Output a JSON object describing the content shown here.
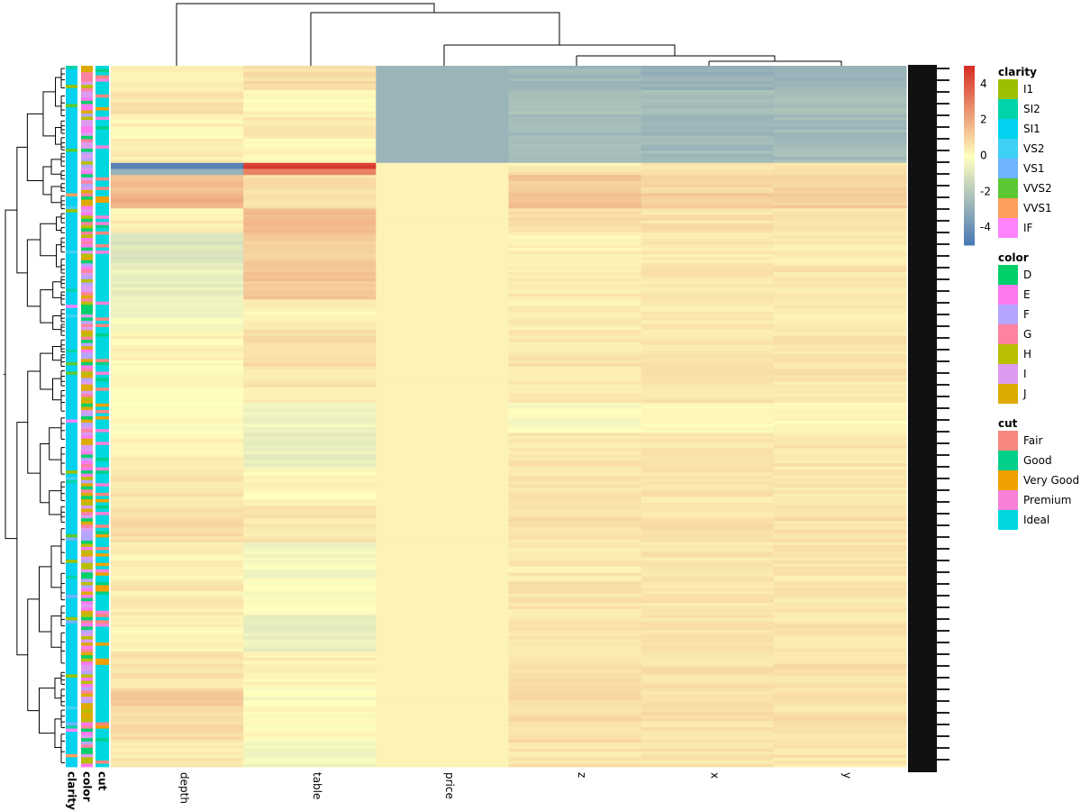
{
  "chart_data": {
    "type": "heatmap",
    "columns": [
      "depth",
      "table",
      "price",
      "z",
      "x",
      "y"
    ],
    "row_annotations": [
      "clarity",
      "color",
      "cut"
    ],
    "color_scale": {
      "ticks": [
        4,
        2,
        0,
        -2,
        -4
      ],
      "min": -5,
      "max": 5,
      "low_color": "#4575B4",
      "mid_color": "#FFFFBF",
      "high_color": "#D73027"
    },
    "segments": [
      {
        "rows": 8,
        "values": [
          0.4,
          0.8,
          -2.7,
          -2.6,
          -2.8,
          -2.7
        ]
      },
      {
        "rows": 8,
        "values": [
          0.6,
          0.2,
          -2.7,
          -2.2,
          -2.4,
          -2.3
        ]
      },
      {
        "rows": 8,
        "values": [
          0.3,
          0.5,
          -2.7,
          -2.5,
          -2.6,
          -2.5
        ]
      },
      {
        "rows": 8,
        "values": [
          0.5,
          0.3,
          -2.7,
          -2.3,
          -2.5,
          -2.4
        ]
      },
      {
        "rows": 2,
        "values": [
          -4.5,
          4.6,
          0.3,
          0.4,
          0.5,
          0.5
        ]
      },
      {
        "rows": 2,
        "values": [
          -3.0,
          3.0,
          0.3,
          0.6,
          0.6,
          0.6
        ]
      },
      {
        "rows": 6,
        "values": [
          1.5,
          0.8,
          0.3,
          1.3,
          1.0,
          1.0
        ]
      },
      {
        "rows": 5,
        "values": [
          1.9,
          0.6,
          0.3,
          1.6,
          1.2,
          1.2
        ]
      },
      {
        "rows": 8,
        "values": [
          0.4,
          1.6,
          0.3,
          0.8,
          0.7,
          0.7
        ]
      },
      {
        "rows": 10,
        "values": [
          -1.0,
          1.2,
          0.3,
          0.3,
          0.5,
          0.5
        ]
      },
      {
        "rows": 12,
        "values": [
          -0.6,
          1.4,
          0.3,
          0.5,
          0.6,
          0.6
        ]
      },
      {
        "rows": 10,
        "values": [
          -0.3,
          0.3,
          0.3,
          0.4,
          0.5,
          0.5
        ]
      },
      {
        "rows": 12,
        "values": [
          0.2,
          0.9,
          0.3,
          0.6,
          0.6,
          0.6
        ]
      },
      {
        "rows": 12,
        "values": [
          0.1,
          0.5,
          0.3,
          0.5,
          0.6,
          0.6
        ]
      },
      {
        "rows": 10,
        "values": [
          0.0,
          -0.4,
          0.3,
          -0.1,
          0.1,
          0.1
        ]
      },
      {
        "rows": 12,
        "values": [
          0.3,
          -0.6,
          0.3,
          0.6,
          0.6,
          0.6
        ]
      },
      {
        "rows": 12,
        "values": [
          0.6,
          0.2,
          0.3,
          0.6,
          0.6,
          0.6
        ]
      },
      {
        "rows": 12,
        "values": [
          0.8,
          0.6,
          0.3,
          0.7,
          0.7,
          0.7
        ]
      },
      {
        "rows": 12,
        "values": [
          0.3,
          -0.3,
          0.3,
          0.5,
          0.6,
          0.6
        ]
      },
      {
        "rows": 12,
        "values": [
          0.5,
          0.0,
          0.3,
          0.6,
          0.6,
          0.6
        ]
      },
      {
        "rows": 12,
        "values": [
          0.2,
          -0.5,
          0.3,
          0.6,
          0.6,
          0.6
        ]
      },
      {
        "rows": 12,
        "values": [
          0.6,
          0.3,
          0.3,
          0.7,
          0.7,
          0.7
        ]
      },
      {
        "rows": 6,
        "values": [
          1.2,
          -0.2,
          0.3,
          0.9,
          0.7,
          0.7
        ]
      },
      {
        "rows": 12,
        "values": [
          0.8,
          0.1,
          0.3,
          0.8,
          0.7,
          0.7
        ]
      },
      {
        "rows": 8,
        "values": [
          0.5,
          -0.3,
          0.3,
          0.6,
          0.6,
          0.6
        ]
      }
    ],
    "legends": [
      {
        "title": "clarity",
        "items": [
          {
            "label": "I1",
            "color": "#9BC000"
          },
          {
            "label": "SI2",
            "color": "#00D3A8"
          },
          {
            "label": "SI1",
            "color": "#00D2F0"
          },
          {
            "label": "VS2",
            "color": "#3FD0F5"
          },
          {
            "label": "VS1",
            "color": "#6EB4FF"
          },
          {
            "label": "VVS2",
            "color": "#5AC832"
          },
          {
            "label": "VVS1",
            "color": "#FF9E5E"
          },
          {
            "label": "IF",
            "color": "#FF82FF"
          }
        ]
      },
      {
        "title": "color",
        "items": [
          {
            "label": "D",
            "color": "#00D06A"
          },
          {
            "label": "E",
            "color": "#FF78F0"
          },
          {
            "label": "F",
            "color": "#B4A6FF"
          },
          {
            "label": "G",
            "color": "#FF82A0"
          },
          {
            "label": "H",
            "color": "#B8BE00"
          },
          {
            "label": "I",
            "color": "#DC9BF0"
          },
          {
            "label": "J",
            "color": "#DCAA00"
          }
        ]
      },
      {
        "title": "cut",
        "items": [
          {
            "label": "Fair",
            "color": "#F8877F"
          },
          {
            "label": "Good",
            "color": "#00D08A"
          },
          {
            "label": "Very Good",
            "color": "#F0A000"
          },
          {
            "label": "Premium",
            "color": "#F880D8"
          },
          {
            "label": "Ideal",
            "color": "#00D8E0"
          }
        ]
      }
    ]
  }
}
